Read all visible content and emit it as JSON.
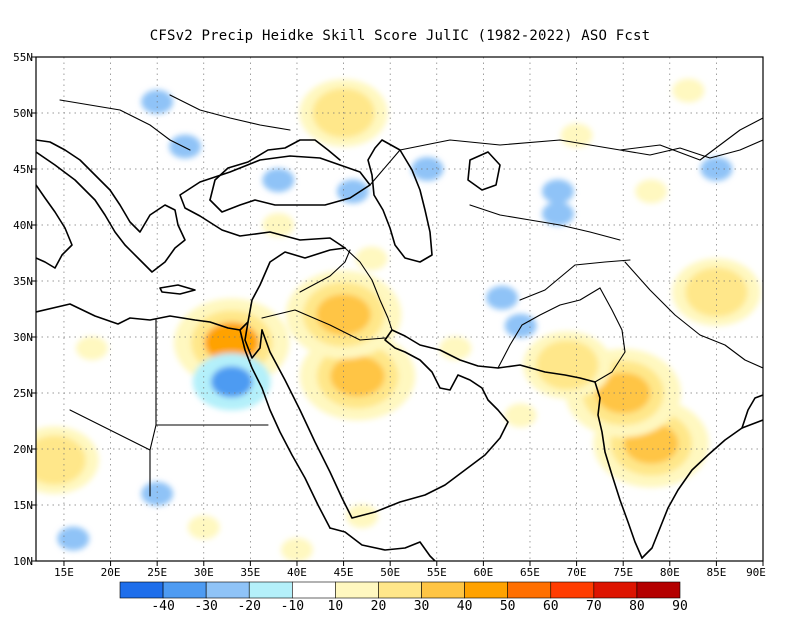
{
  "title": "CFSv2 Precip Heidke Skill Score JulIC (1982-2022) ASO Fcst",
  "map": {
    "lon_range": [
      12,
      90
    ],
    "lat_range": [
      10,
      55
    ],
    "lon_ticks": [
      "15E",
      "20E",
      "25E",
      "30E",
      "35E",
      "40E",
      "45E",
      "50E",
      "55E",
      "60E",
      "65E",
      "70E",
      "75E",
      "80E",
      "85E",
      "90E"
    ],
    "lat_ticks": [
      "10N",
      "15N",
      "20N",
      "25N",
      "30N",
      "35N",
      "40N",
      "45N",
      "50N",
      "55N"
    ],
    "grid": "dotted",
    "hotspots": [
      {
        "lon": 46.5,
        "lat": 26.5,
        "level": 40
      },
      {
        "lon": 45,
        "lat": 32,
        "level": 40
      },
      {
        "lon": 33,
        "lat": 29.5,
        "level": 50
      },
      {
        "lon": 78,
        "lat": 20.5,
        "level": 40
      },
      {
        "lon": 75,
        "lat": 25,
        "level": 40
      },
      {
        "lon": 69,
        "lat": 27.5,
        "level": 30
      },
      {
        "lon": 85,
        "lat": 34,
        "level": 30
      },
      {
        "lon": 45,
        "lat": 50,
        "level": 30
      },
      {
        "lon": 14,
        "lat": 19,
        "level": 30
      },
      {
        "lon": 18,
        "lat": 29,
        "level": 20
      },
      {
        "lon": 30,
        "lat": 13,
        "level": 20
      },
      {
        "lon": 64,
        "lat": 23,
        "level": 20
      },
      {
        "lon": 57,
        "lat": 29,
        "level": 20
      },
      {
        "lon": 70,
        "lat": 48,
        "level": 20
      },
      {
        "lon": 78,
        "lat": 43,
        "level": 20
      },
      {
        "lon": 82,
        "lat": 52,
        "level": 20
      },
      {
        "lon": 48,
        "lat": 37,
        "level": 20
      },
      {
        "lon": 38,
        "lat": 40,
        "level": 20
      },
      {
        "lon": 47,
        "lat": 14,
        "level": 20
      },
      {
        "lon": 40,
        "lat": 11,
        "level": 20
      },
      {
        "lon": 33,
        "lat": 26,
        "level": -30
      },
      {
        "lon": 64,
        "lat": 31,
        "level": -20
      },
      {
        "lon": 62,
        "lat": 33.5,
        "level": -20
      },
      {
        "lon": 46,
        "lat": 43,
        "level": -20
      },
      {
        "lon": 54,
        "lat": 45,
        "level": -20
      },
      {
        "lon": 28,
        "lat": 47,
        "level": -20
      },
      {
        "lon": 25,
        "lat": 51,
        "level": -20
      },
      {
        "lon": 38,
        "lat": 44,
        "level": -20
      },
      {
        "lon": 68,
        "lat": 41,
        "level": -20
      },
      {
        "lon": 85,
        "lat": 45,
        "level": -20
      },
      {
        "lon": 25,
        "lat": 16,
        "level": -20
      },
      {
        "lon": 68,
        "lat": 43,
        "level": -20
      },
      {
        "lon": 16,
        "lat": 12,
        "level": -20
      }
    ]
  },
  "colorbar": {
    "colors": [
      "#1e6eeb",
      "#4e9bf2",
      "#8fc3f7",
      "#b4f0fa",
      "#ffffff",
      "#fff8c0",
      "#ffe78a",
      "#ffc544",
      "#ffa200",
      "#ff6f00",
      "#ff3c00",
      "#dd1400",
      "#b40000"
    ],
    "labels": [
      "-40",
      "-30",
      "-20",
      "-10",
      "10",
      "20",
      "30",
      "40",
      "50",
      "60",
      "70",
      "80",
      "90"
    ]
  }
}
